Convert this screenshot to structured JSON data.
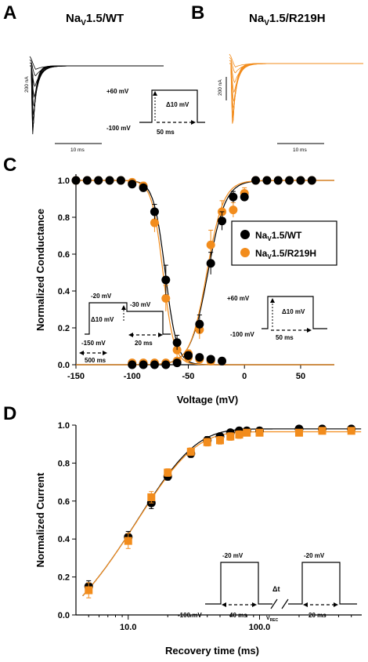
{
  "colors": {
    "wt": "#000000",
    "mut": "#f28c1c",
    "wt_fit": "#000000",
    "mut_fit": "#f28c1c"
  },
  "panel_a": {
    "letter": "A",
    "title_prefix": "Na",
    "title_sub": "V",
    "title_suffix": "1.5/WT",
    "scale_y": "200 nA",
    "scale_x": "10 ms",
    "proto": {
      "v_test": "+60 mV",
      "v_hold": "-100 mV",
      "step": "Δ10 mV",
      "dur": "50 ms"
    }
  },
  "panel_b": {
    "letter": "B",
    "title_prefix": "Na",
    "title_sub": "V",
    "title_suffix": "1.5/R219H",
    "scale_y": "200 nA",
    "scale_x": "10 ms"
  },
  "panel_c": {
    "letter": "C",
    "ylabel": "Normalized Conductance",
    "xlabel": "Voltage (mV)",
    "legend": [
      {
        "prefix": "Na",
        "sub": "V",
        "suffix": "1.5/WT"
      },
      {
        "prefix": "Na",
        "sub": "V",
        "suffix": "1.5/R219H"
      }
    ],
    "proto_inact": {
      "v1": "-20 mV",
      "v2": "-30 mV",
      "step": "Δ10 mV",
      "v_hold": "-150 mV",
      "dur1": "20 ms",
      "dur2": "500 ms"
    },
    "proto_act": {
      "v_test": "+60 mV",
      "v_hold": "-100 mV",
      "step": "Δ10 mV",
      "dur": "50 ms"
    }
  },
  "panel_d": {
    "letter": "D",
    "ylabel": "Normalized Current",
    "xlabel": "Recovery time (ms)",
    "proto": {
      "v1": "-20 mV",
      "v2": "-20 mV",
      "v_hold": "-100 mV",
      "dt": "Δt",
      "vrec": "V",
      "vrec_sub": "REC",
      "dur1": "40 ms",
      "dur2": "20 ms"
    }
  },
  "chart_data": [
    {
      "type": "scatter",
      "panel": "C",
      "title": "",
      "xlabel": "Voltage (mV)",
      "ylabel": "Normalized Conductance",
      "xlim": [
        -150,
        80
      ],
      "ylim": [
        0,
        1
      ],
      "xticks": [
        -150,
        -100,
        -50,
        0,
        50
      ],
      "yticks": [
        0.0,
        0.2,
        0.4,
        0.6,
        0.8,
        1.0
      ],
      "xtick_labels": [
        "-150",
        "-100",
        "-50",
        "0",
        "50"
      ],
      "ytick_labels": [
        "0.0",
        "0.2",
        "0.4",
        "0.6",
        "0.8",
        "1.0"
      ],
      "legend_position": "right",
      "series": [
        {
          "name": "NaV1.5/WT",
          "kind": "inactivation",
          "x": [
            -150,
            -140,
            -130,
            -120,
            -110,
            -100,
            -90,
            -80,
            -70,
            -60,
            -50,
            -40,
            -30,
            -20
          ],
          "y": [
            1.0,
            1.0,
            1.0,
            1.0,
            1.0,
            0.98,
            0.96,
            0.83,
            0.46,
            0.12,
            0.05,
            0.04,
            0.03,
            0.02
          ],
          "err": [
            0,
            0,
            0,
            0,
            0,
            0.01,
            0.01,
            0.04,
            0.08,
            0.04,
            0.02,
            0.01,
            0.01,
            0.01
          ]
        },
        {
          "name": "NaV1.5/R219H",
          "kind": "inactivation",
          "x": [
            -150,
            -140,
            -130,
            -120,
            -110,
            -100,
            -90,
            -80,
            -70,
            -60,
            -50,
            -40,
            -30
          ],
          "y": [
            1.0,
            1.0,
            1.0,
            1.0,
            1.0,
            0.99,
            0.97,
            0.77,
            0.36,
            0.08,
            0.04,
            0.03,
            0.02
          ],
          "err": [
            0,
            0,
            0,
            0,
            0,
            0.01,
            0.02,
            0.05,
            0.07,
            0.04,
            0.02,
            0.01,
            0.01
          ]
        },
        {
          "name": "NaV1.5/WT",
          "kind": "activation",
          "x": [
            -100,
            -90,
            -80,
            -70,
            -60,
            -50,
            -40,
            -30,
            -20,
            -10,
            0,
            10,
            20,
            30,
            40,
            50,
            60
          ],
          "y": [
            0.0,
            0.0,
            0.0,
            0.0,
            0.01,
            0.05,
            0.22,
            0.55,
            0.78,
            0.91,
            0.91,
            1.0,
            1.0,
            1.0,
            1.0,
            1.0,
            1.0
          ],
          "err": [
            0,
            0,
            0,
            0,
            0.01,
            0.02,
            0.05,
            0.06,
            0.05,
            0.03,
            0.02,
            0,
            0,
            0,
            0,
            0,
            0
          ]
        },
        {
          "name": "NaV1.5/R219H",
          "kind": "activation",
          "x": [
            -100,
            -90,
            -80,
            -70,
            -60,
            -50,
            -40,
            -30,
            -20,
            -10,
            0,
            10,
            20,
            30,
            40,
            50,
            60
          ],
          "y": [
            0.01,
            0.01,
            0.01,
            0.01,
            0.02,
            0.06,
            0.19,
            0.65,
            0.83,
            0.84,
            0.93,
            1.0,
            1.0,
            1.0,
            1.0,
            1.0,
            1.0
          ],
          "err": [
            0,
            0,
            0,
            0,
            0.01,
            0.02,
            0.05,
            0.08,
            0.06,
            0.04,
            0.03,
            0,
            0,
            0,
            0,
            0,
            0
          ]
        }
      ],
      "fits": [
        {
          "name": "NaV1.5/WT",
          "kind": "inactivation",
          "v_half": -70.5,
          "k": 5.2
        },
        {
          "name": "NaV1.5/R219H",
          "kind": "inactivation",
          "v_half": -72.5,
          "k": 5.0
        },
        {
          "name": "NaV1.5/WT",
          "kind": "activation",
          "v_half": -32.5,
          "k": 7.8
        },
        {
          "name": "NaV1.5/R219H",
          "kind": "activation",
          "v_half": -33.5,
          "k": 7.4
        }
      ]
    },
    {
      "type": "scatter",
      "panel": "D",
      "title": "",
      "xlabel": "Recovery time (ms)",
      "ylabel": "Normalized Current",
      "xscale": "log",
      "xlim": [
        4,
        600
      ],
      "ylim": [
        0,
        1
      ],
      "xticks": [
        10,
        100
      ],
      "xtick_labels": [
        "10.0",
        "100.0"
      ],
      "yticks": [
        0.0,
        0.2,
        0.4,
        0.6,
        0.8,
        1.0
      ],
      "ytick_labels": [
        "0.0",
        "0.2",
        "0.4",
        "0.6",
        "0.8",
        "1.0"
      ],
      "series": [
        {
          "name": "NaV1.5/WT",
          "marker": "circle",
          "x": [
            5,
            10,
            15,
            20,
            30,
            40,
            50,
            60,
            70,
            80,
            100,
            200,
            300,
            500
          ],
          "y": [
            0.15,
            0.41,
            0.59,
            0.73,
            0.85,
            0.92,
            0.94,
            0.96,
            0.97,
            0.97,
            0.97,
            0.98,
            0.98,
            0.98
          ],
          "err": [
            0.03,
            0.03,
            0.03,
            0.02,
            0.02,
            0.02,
            0.01,
            0.01,
            0.01,
            0.01,
            0.01,
            0.01,
            0.01,
            0.01
          ]
        },
        {
          "name": "NaV1.5/R219H",
          "marker": "square",
          "x": [
            5,
            10,
            15,
            20,
            30,
            40,
            50,
            60,
            70,
            80,
            100,
            200,
            300,
            500
          ],
          "y": [
            0.13,
            0.39,
            0.62,
            0.75,
            0.86,
            0.91,
            0.92,
            0.94,
            0.95,
            0.96,
            0.96,
            0.96,
            0.97,
            0.97
          ],
          "err": [
            0.04,
            0.04,
            0.03,
            0.02,
            0.02,
            0.02,
            0.02,
            0.02,
            0.02,
            0.01,
            0.01,
            0.01,
            0.01,
            0.01
          ]
        }
      ],
      "fits": [
        {
          "name": "NaV1.5/WT",
          "tau": 12.0,
          "delay": 3.2,
          "amp": 0.98
        },
        {
          "name": "NaV1.5/R219H",
          "tau": 11.8,
          "delay": 3.2,
          "amp": 0.965
        }
      ]
    }
  ]
}
